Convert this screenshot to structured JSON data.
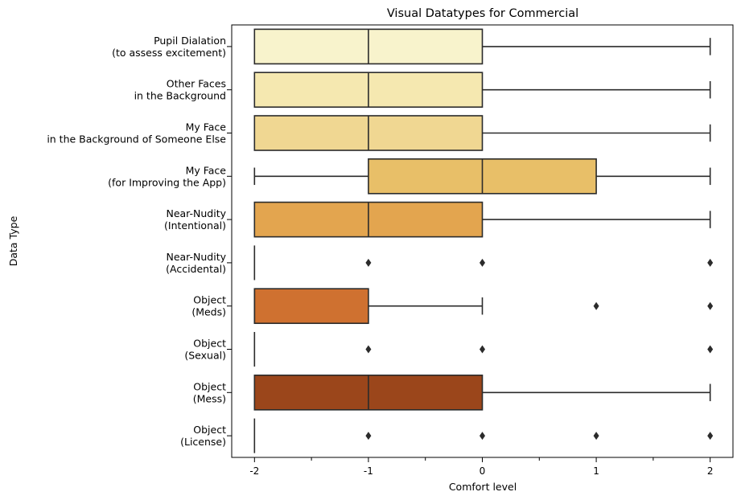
{
  "chart_data": {
    "type": "boxplot",
    "orientation": "horizontal",
    "title": "Visual Datatypes for Commercial",
    "xlabel": "Comfort level",
    "ylabel": "Data Type",
    "xlim": [
      -2.2,
      2.2
    ],
    "xticks": [
      -2,
      -1,
      0,
      1,
      2
    ],
    "xtick_labels": [
      "-2",
      "-1",
      "0",
      "1",
      "2"
    ],
    "minor_xticks": [
      -1.5,
      -0.5,
      0.5,
      1.5
    ],
    "grid": false,
    "categories": [
      {
        "label": [
          "Pupil Dialation",
          "(to assess excitement)"
        ],
        "whisker_low": -2,
        "q1": -2,
        "median": -1,
        "q3": 0,
        "whisker_high": 2,
        "outliers": [],
        "color": "#f8f3cc"
      },
      {
        "label": [
          "Other Faces",
          "in the Background"
        ],
        "whisker_low": -2,
        "q1": -2,
        "median": -1,
        "q3": 0,
        "whisker_high": 2,
        "outliers": [],
        "color": "#f5e8b0"
      },
      {
        "label": [
          "My Face",
          "in the Background of Someone Else"
        ],
        "whisker_low": -2,
        "q1": -2,
        "median": -1,
        "q3": 0,
        "whisker_high": 2,
        "outliers": [],
        "color": "#f0d792"
      },
      {
        "label": [
          "My Face",
          "(for Improving the App)"
        ],
        "whisker_low": -2,
        "q1": -1,
        "median": 0,
        "q3": 1,
        "whisker_high": 2,
        "outliers": [],
        "color": "#e8bf68"
      },
      {
        "label": [
          "Near-Nudity",
          "(Intentional)"
        ],
        "whisker_low": -2,
        "q1": -2,
        "median": -1,
        "q3": 0,
        "whisker_high": 2,
        "outliers": [],
        "color": "#e3a54f"
      },
      {
        "label": [
          "Near-Nudity",
          "(Accidental)"
        ],
        "whisker_low": -2,
        "q1": -2,
        "median": -2,
        "q3": -2,
        "whisker_high": -2,
        "outliers": [
          -1,
          0,
          2
        ],
        "color": "#dc8a3a"
      },
      {
        "label": [
          "Object",
          "(Meds)"
        ],
        "whisker_low": -2,
        "q1": -2,
        "median": -2,
        "q3": -1,
        "whisker_high": 0,
        "outliers": [
          1,
          2
        ],
        "color": "#cf7130"
      },
      {
        "label": [
          "Object",
          "(Sexual)"
        ],
        "whisker_low": -2,
        "q1": -2,
        "median": -2,
        "q3": -2,
        "whisker_high": -2,
        "outliers": [
          -1,
          0,
          2
        ],
        "color": "#b65a23"
      },
      {
        "label": [
          "Object",
          "(Mess)"
        ],
        "whisker_low": -2,
        "q1": -2,
        "median": -1,
        "q3": 0,
        "whisker_high": 2,
        "outliers": [],
        "color": "#9b461b"
      },
      {
        "label": [
          "Object",
          "(License)"
        ],
        "whisker_low": -2,
        "q1": -2,
        "median": -2,
        "q3": -2,
        "whisker_high": -2,
        "outliers": [
          -1,
          0,
          1,
          2
        ],
        "color": "#7d3513"
      }
    ]
  }
}
